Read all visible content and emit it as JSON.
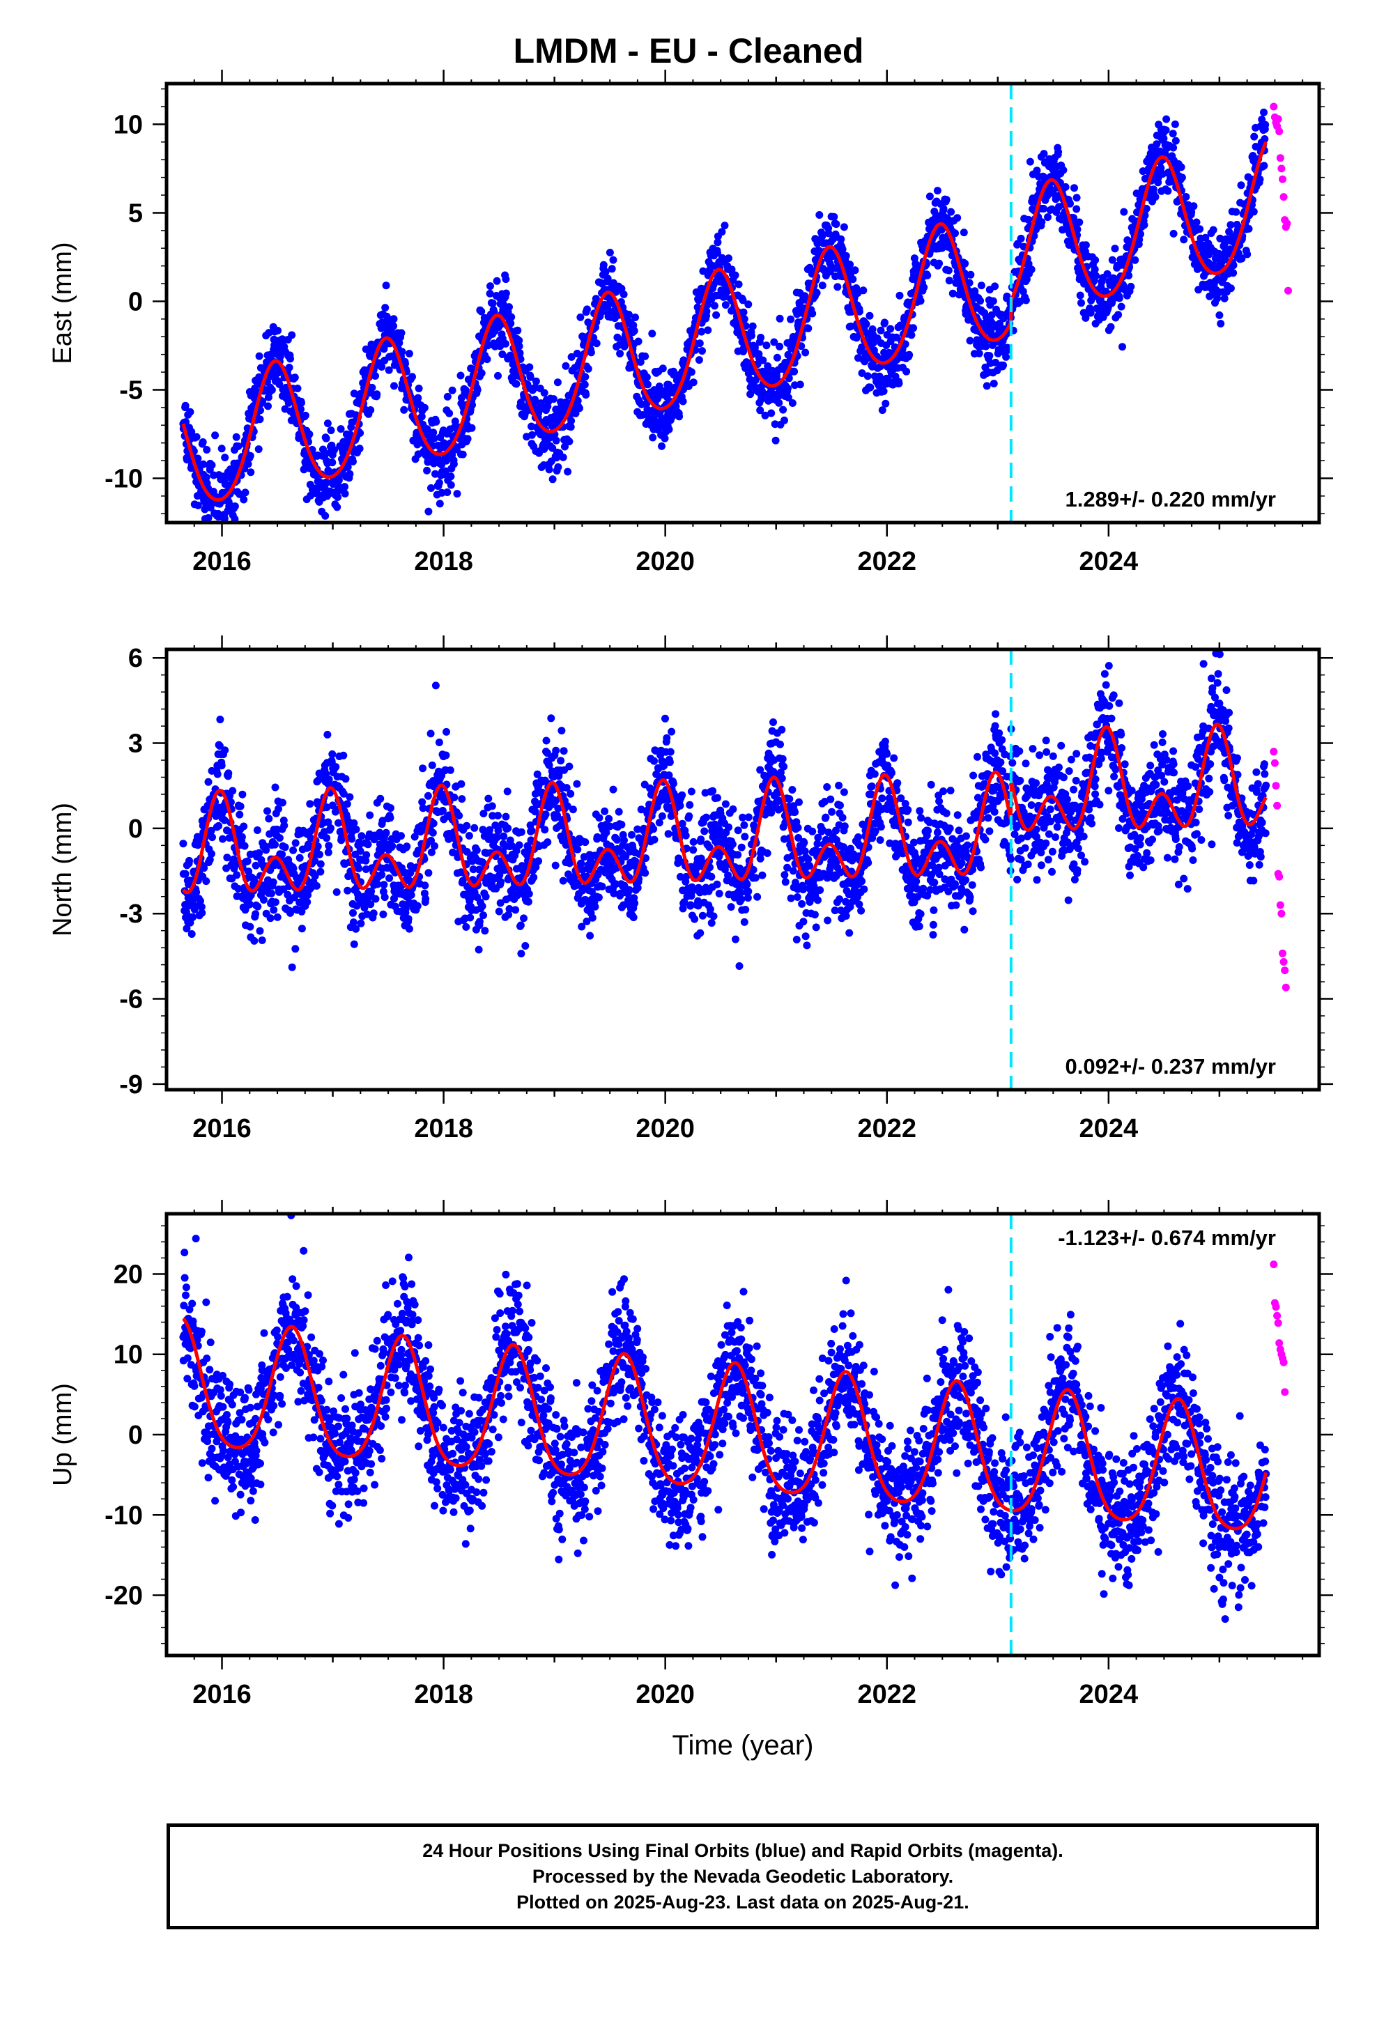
{
  "title": "LMDM  - EU - Cleaned",
  "footer": {
    "line1": "24 Hour Positions Using Final Orbits (blue) and Rapid Orbits (magenta).",
    "line2": "Processed by the Nevada Geodetic Laboratory.",
    "line3": "Plotted on 2025-Aug-23. Last data on 2025-Aug-21."
  },
  "colors": {
    "final_orbits": "#0000ff",
    "rapid_orbits": "#ff00ff",
    "model_fit": "#ff0000",
    "event_line": "#00e5ff"
  },
  "chart_data": [
    {
      "type": "scatter",
      "ylabel": "East (mm)",
      "xlabel": "",
      "xlim": [
        2015.5,
        2025.9
      ],
      "ylim": [
        -12.5,
        12.3
      ],
      "x_ticks": [
        "2016",
        "2018",
        "2020",
        "2022",
        "2024"
      ],
      "y_ticks": [
        "10",
        "5",
        "0",
        "-5",
        "-10"
      ],
      "rate_label": "1.289+/- 0.220 mm/yr",
      "rate_position": "bottom-right",
      "event_line_x": 2023.12,
      "fit_model": {
        "offset": -8.5,
        "rate": 1.289,
        "start": 2015.6,
        "annual_amp": 3.6,
        "annual_phase_peak": 2015.48,
        "semiannual_amp": 0.4,
        "noise_sd": 1.1,
        "step": {
          "x": 2023.12,
          "size": 1.2
        }
      },
      "series": [
        {
          "name": "Final Orbits",
          "color": "#0000ff",
          "x_range": [
            2015.65,
            2025.42
          ],
          "n_points": 3400,
          "values_estimate": "seasonal oscillation from about -9 to 8 mm with upward trend"
        },
        {
          "name": "Rapid Orbits",
          "color": "#ff00ff",
          "x": [
            2025.49,
            2025.5,
            2025.51,
            2025.52,
            2025.53,
            2025.54,
            2025.55,
            2025.56,
            2025.57,
            2025.58,
            2025.59,
            2025.6,
            2025.61,
            2025.62
          ],
          "values": [
            11.0,
            10.4,
            10.1,
            9.9,
            10.3,
            9.6,
            8.1,
            7.5,
            6.9,
            5.9,
            4.6,
            4.2,
            4.4,
            0.6
          ]
        }
      ]
    },
    {
      "type": "scatter",
      "ylabel": "North (mm)",
      "xlabel": "",
      "xlim": [
        2015.5,
        2025.9
      ],
      "ylim": [
        -9.2,
        6.3
      ],
      "x_ticks": [
        "2016",
        "2018",
        "2020",
        "2022",
        "2024"
      ],
      "y_ticks": [
        "6",
        "3",
        "0",
        "-3",
        "-6",
        "-9"
      ],
      "rate_label": "0.092+/- 0.237 mm/yr",
      "rate_position": "bottom-right",
      "event_line_x": 2023.12,
      "fit_model": {
        "offset": -1.0,
        "rate": 0.092,
        "start": 2015.6,
        "annual_amp": 1.2,
        "annual_phase_peak": 2015.98,
        "semiannual_amp": 1.1,
        "noise_sd": 1.0,
        "step": {
          "x": 2023.12,
          "size": 1.5
        }
      },
      "series": [
        {
          "name": "Final Orbits",
          "color": "#0000ff",
          "x_range": [
            2015.65,
            2025.42
          ],
          "n_points": 3400,
          "values_estimate": "annual and semiannual oscillation between about -3 and 3 mm"
        },
        {
          "name": "Rapid Orbits",
          "color": "#ff00ff",
          "x": [
            2025.49,
            2025.5,
            2025.51,
            2025.52,
            2025.53,
            2025.54,
            2025.55,
            2025.56,
            2025.57,
            2025.58,
            2025.59,
            2025.6
          ],
          "values": [
            2.7,
            2.3,
            1.5,
            0.8,
            -1.6,
            -1.7,
            -2.7,
            -3.0,
            -4.4,
            -4.7,
            -5.0,
            -5.6
          ]
        }
      ]
    },
    {
      "type": "scatter",
      "ylabel": "Up (mm)",
      "xlabel": "Time (year)",
      "xlim": [
        2015.5,
        2025.9
      ],
      "ylim": [
        -27.5,
        27.5
      ],
      "x_ticks": [
        "2016",
        "2018",
        "2020",
        "2022",
        "2024"
      ],
      "y_ticks": [
        "20",
        "10",
        "0",
        "-10",
        "-20"
      ],
      "rate_label": "-1.123+/- 0.674 mm/yr",
      "rate_position": "top-right",
      "event_line_x": 2023.12,
      "fit_model": {
        "offset": 5.5,
        "rate": -1.123,
        "start": 2015.6,
        "annual_amp": 7.8,
        "annual_phase_peak": 2015.63,
        "semiannual_amp": 1.3,
        "noise_sd": 4.0,
        "step": {
          "x": 2023.12,
          "size": 0.0
        }
      },
      "series": [
        {
          "name": "Final Orbits",
          "color": "#0000ff",
          "x_range": [
            2015.65,
            2025.42
          ],
          "n_points": 3400,
          "values_estimate": "annual oscillation from about -8 to 12 mm with slight downward trend"
        },
        {
          "name": "Rapid Orbits",
          "color": "#ff00ff",
          "x": [
            2025.49,
            2025.5,
            2025.51,
            2025.52,
            2025.53,
            2025.54,
            2025.55,
            2025.56,
            2025.57,
            2025.58,
            2025.59
          ],
          "values": [
            21.2,
            16.4,
            15.9,
            14.8,
            13.9,
            11.4,
            10.6,
            10.0,
            9.5,
            9.0,
            5.3
          ]
        }
      ]
    }
  ]
}
